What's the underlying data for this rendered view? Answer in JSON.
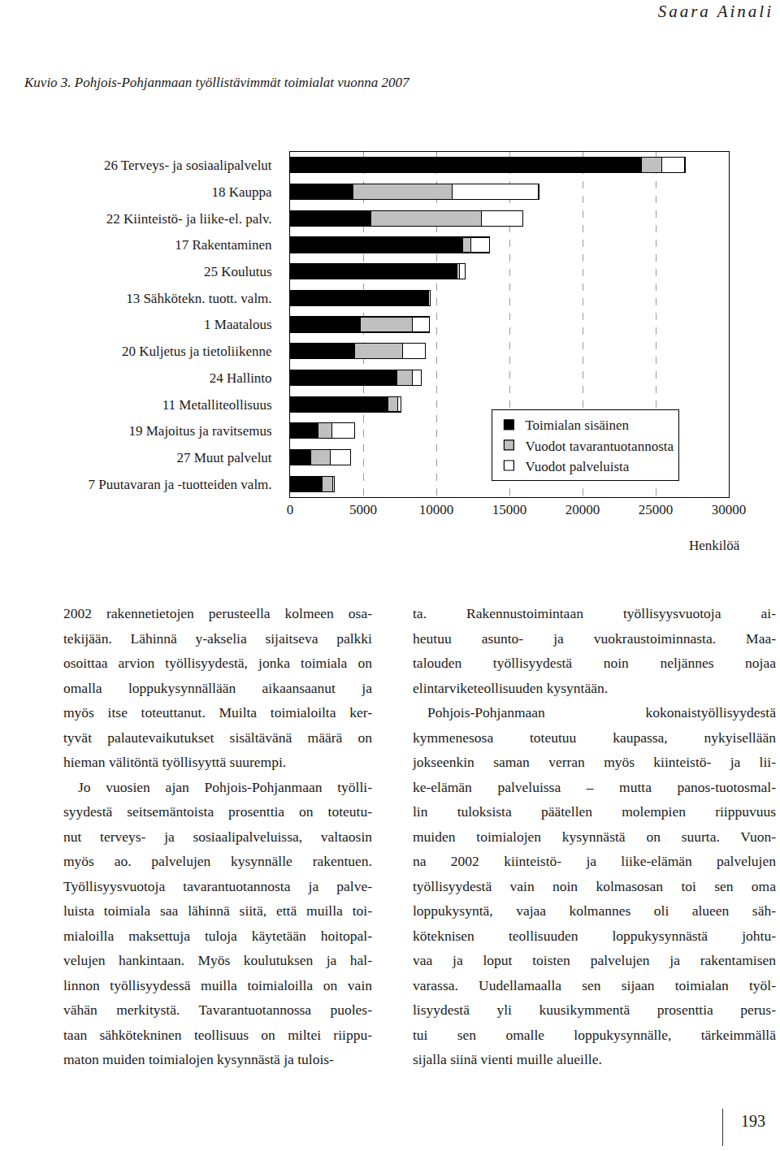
{
  "header": {
    "running_head": "Saara Ainali"
  },
  "caption": "Kuvio 3. Pohjois-Pohjanmaan työllistävimmät toimialat vuonna 2007",
  "chart_data": {
    "type": "bar",
    "orientation": "horizontal",
    "stacked": true,
    "categories": [
      "26 Terveys- ja sosiaalipalvelut",
      "18 Kauppa",
      "22 Kiinteistö- ja liike-el. palv.",
      "17 Rakentaminen",
      "25 Koulutus",
      "13 Sähkötekn. tuott. valm.",
      "1 Maatalous",
      "20 Kuljetus ja tietoliikenne",
      "24 Hallinto",
      "11 Metalliteollisuus",
      "19 Majoitus ja ravitsemus",
      "27 Muut palvelut",
      "7 Puutavaran ja -tuotteiden valm."
    ],
    "series": [
      {
        "name": "Toimialan sisäinen",
        "color": "#000000",
        "values": [
          24000,
          4300,
          5500,
          11800,
          11400,
          9400,
          4800,
          4400,
          7300,
          6700,
          1900,
          1400,
          2200
        ]
      },
      {
        "name": "Vuodot tavarantuotannosta",
        "color": "#c0c0c0",
        "values": [
          1400,
          6800,
          7600,
          550,
          200,
          50,
          3550,
          3300,
          1050,
          670,
          940,
          1330,
          720
        ]
      },
      {
        "name": "Vuodot palveluista",
        "color": "#ffffff",
        "values": [
          1600,
          5900,
          2800,
          1300,
          350,
          120,
          1170,
          1560,
          610,
          220,
          1560,
          1390,
          110
        ]
      }
    ],
    "xlabel": "Henkilöä",
    "xlim": [
      0,
      30000
    ],
    "xticks": [
      0,
      5000,
      10000,
      15000,
      20000,
      25000,
      30000
    ],
    "grid": true,
    "legend": "lower right"
  },
  "columns": [
    [
      [
        "2002 rakennetietojen perusteella kolmeen osa-",
        "tekijään. Lähinnä y-akselia sijaitseva palkki",
        "osoittaa arvion työllisyydestä, jonka toimiala on",
        "omalla loppukysynnällään aikaansaanut ja",
        "myös itse toteuttanut. Muilta toimialoilta ker-",
        "tyvät palautevaikutukset sisältävänä määrä on",
        "hieman välitöntä työllisyyttä suurempi."
      ],
      [
        "Jo vuosien ajan Pohjois-Pohjanmaan työlli-",
        "syydestä seitsemäntoista prosenttia on toteutu-",
        "nut terveys- ja sosiaalipalveluissa, valtaosin",
        "myös ao. palvelujen kysynnälle rakentuen.",
        "Työllisyysvuotoja tavarantuotannosta ja palve-",
        "luista toimiala saa lähinnä siitä, että muilla toi-",
        "mialoilla maksettuja tuloja käytetään hoitopal-",
        "velujen hankintaan. Myös koulutuksen ja hal-",
        "linnon työllisyydessä muilla toimialoilla on vain",
        "vähän merkitystä. Tavarantuotannossa puoles-",
        "taan sähkötekninen teollisuus on miltei riippu-",
        "maton muiden toimialojen kysynnästä ja tulois-"
      ]
    ],
    [
      [
        "ta. Rakennustoimintaan työllisyysvuotoja ai-",
        "heutuu asunto- ja vuokraustoiminnasta. Maa-",
        "talouden työllisyydestä noin neljännes nojaa",
        "elintarviketeollisuuden kysyntään."
      ],
      [
        "Pohjois-Pohjanmaan kokonaistyöllisyydestä",
        "kymmenesosa toteutuu kaupassa, nykyisellään",
        "jokseenkin saman verran myös kiinteistö- ja lii-",
        "ke-elämän palveluissa – mutta panos-tuotosmal-",
        "lin tuloksista päätellen molempien riippuvuus",
        "muiden toimialojen kysynnästä on suurta. Vuon-",
        "na 2002 kiinteistö- ja liike-elämän palvelujen",
        "työllisyydestä vain noin kolmasosan toi sen oma",
        "loppukysyntä, vajaa kolmannes oli alueen säh-",
        "köteknisen teollisuuden loppukysynnästä johtu-",
        "vaa ja loput toisten palvelujen ja rakentamisen",
        "varassa. Uudellamaalla sen sijaan toimialan työl-",
        "lisyydestä yli kuusikymmentä prosenttia perus-",
        "tui sen omalle loppukysynnälle, tärkeimmällä",
        "sijalla siinä vienti muille alueille."
      ]
    ]
  ],
  "page_number": "193"
}
